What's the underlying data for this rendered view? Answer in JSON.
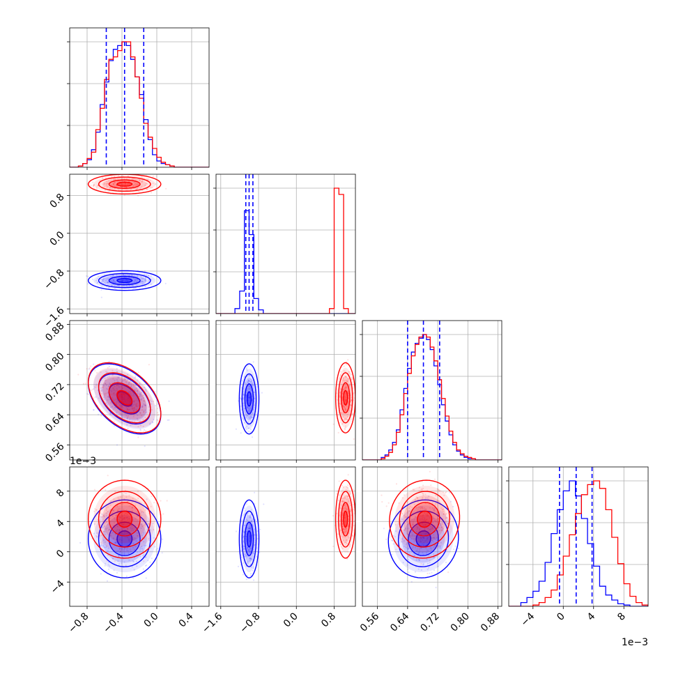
{
  "figure": {
    "type": "corner-plot",
    "params": [
      "p1",
      "p2",
      "p3",
      "p4"
    ],
    "series": [
      {
        "id": "blue",
        "color": "#0000ff"
      },
      {
        "id": "red",
        "color": "#ff0000"
      }
    ],
    "quantile_line_color": "#0000ff"
  },
  "chart_data": {
    "type": "corner",
    "axes": [
      {
        "id": "p1",
        "range": [
          -1.0,
          0.6
        ],
        "ticks": [
          -0.8,
          -0.4,
          0.0,
          0.4
        ],
        "tick_labels": [
          "−0.8",
          "−0.4",
          "0.0",
          "0.4"
        ]
      },
      {
        "id": "p2",
        "range": [
          -1.7,
          1.25
        ],
        "ticks": [
          -1.6,
          -0.8,
          0.0,
          0.8
        ],
        "tick_labels": [
          "−1.6",
          "−0.8",
          "0.0",
          "0.8"
        ]
      },
      {
        "id": "p3",
        "range": [
          0.52,
          0.89
        ],
        "ticks": [
          0.56,
          0.64,
          0.72,
          0.8,
          0.88
        ],
        "tick_labels": [
          "0.56",
          "0.64",
          "0.72",
          "0.80",
          "0.88"
        ]
      },
      {
        "id": "p4",
        "range": [
          -7.2,
          11.2
        ],
        "ticks": [
          -4,
          0,
          4,
          8
        ],
        "tick_labels": [
          "−4",
          "0",
          "4",
          "8"
        ],
        "scale_label": "1e−3"
      }
    ],
    "diagonal_quantiles_blue": [
      [
        -0.58,
        -0.37,
        -0.15
      ],
      [
        -1.07,
        -1.0,
        -0.92
      ],
      [
        0.64,
        0.682,
        0.725
      ],
      [
        -0.5,
        1.7,
        3.8
      ]
    ],
    "histograms": [
      {
        "param": "p1",
        "edges": [
          -1.0,
          -0.95,
          -0.9,
          -0.85,
          -0.8,
          -0.75,
          -0.7,
          -0.65,
          -0.6,
          -0.55,
          -0.5,
          -0.45,
          -0.4,
          -0.35,
          -0.3,
          -0.25,
          -0.2,
          -0.15,
          -0.1,
          -0.05,
          0.0,
          0.05,
          0.1,
          0.15,
          0.2,
          0.25,
          0.3,
          0.35,
          0.4,
          0.45,
          0.5,
          0.55,
          0.6
        ],
        "blue": [
          0,
          0,
          0.01,
          0.03,
          0.06,
          0.14,
          0.28,
          0.5,
          0.68,
          0.85,
          0.94,
          0.97,
          1.0,
          0.97,
          0.86,
          0.72,
          0.58,
          0.38,
          0.22,
          0.1,
          0.05,
          0.03,
          0.02,
          0.01,
          0,
          0,
          0,
          0,
          0,
          0,
          0,
          0
        ],
        "red": [
          0,
          0,
          0.01,
          0.03,
          0.07,
          0.12,
          0.3,
          0.47,
          0.7,
          0.86,
          0.88,
          0.93,
          1.0,
          1.0,
          0.88,
          0.72,
          0.55,
          0.35,
          0.24,
          0.15,
          0.08,
          0.04,
          0.02,
          0.01,
          0,
          0,
          0,
          0,
          0,
          0,
          0,
          0
        ]
      },
      {
        "param": "p2",
        "edges": [
          -1.7,
          -1.6,
          -1.5,
          -1.4,
          -1.3,
          -1.2,
          -1.1,
          -1.0,
          -0.9,
          -0.8,
          -0.7,
          -0.6,
          -0.5,
          -0.4,
          -0.3,
          -0.2,
          -0.1,
          0.0,
          0.1,
          0.2,
          0.3,
          0.4,
          0.5,
          0.6,
          0.7,
          0.8,
          0.9,
          1.0,
          1.1,
          1.2,
          1.25
        ],
        "blue": [
          0,
          0,
          0,
          0,
          0.04,
          0.18,
          0.82,
          0.63,
          0.12,
          0.03,
          0,
          0,
          0,
          0,
          0,
          0,
          0,
          0,
          0,
          0,
          0,
          0,
          0,
          0,
          0,
          0,
          0,
          0,
          0,
          0
        ],
        "red": [
          0,
          0,
          0,
          0,
          0,
          0,
          0,
          0,
          0,
          0,
          0,
          0,
          0,
          0,
          0,
          0,
          0,
          0,
          0,
          0,
          0,
          0,
          0,
          0,
          0.04,
          1.0,
          0.95,
          0.04,
          0,
          0
        ]
      },
      {
        "param": "p3",
        "edges": [
          0.52,
          0.53,
          0.54,
          0.55,
          0.56,
          0.57,
          0.58,
          0.59,
          0.6,
          0.61,
          0.62,
          0.63,
          0.64,
          0.65,
          0.66,
          0.67,
          0.68,
          0.69,
          0.7,
          0.71,
          0.72,
          0.73,
          0.74,
          0.75,
          0.76,
          0.77,
          0.78,
          0.79,
          0.8,
          0.81,
          0.82,
          0.83,
          0.84,
          0.85,
          0.86,
          0.87,
          0.88,
          0.89
        ],
        "blue": [
          0,
          0,
          0,
          0,
          0,
          0.02,
          0.04,
          0.08,
          0.14,
          0.24,
          0.4,
          0.57,
          0.73,
          0.86,
          0.93,
          0.97,
          1.0,
          0.96,
          0.88,
          0.75,
          0.6,
          0.44,
          0.31,
          0.2,
          0.12,
          0.07,
          0.04,
          0.02,
          0.01,
          0.01,
          0,
          0,
          0,
          0,
          0,
          0,
          0
        ],
        "red": [
          0,
          0,
          0,
          0,
          0,
          0.01,
          0.03,
          0.06,
          0.12,
          0.22,
          0.36,
          0.53,
          0.69,
          0.83,
          0.92,
          0.98,
          1.0,
          0.98,
          0.9,
          0.79,
          0.64,
          0.49,
          0.35,
          0.23,
          0.14,
          0.08,
          0.05,
          0.03,
          0.02,
          0.01,
          0,
          0,
          0,
          0,
          0,
          0,
          0
        ]
      },
      {
        "param": "p4",
        "edges": [
          -7.2,
          -6.4,
          -5.6,
          -4.8,
          -4.0,
          -3.2,
          -2.4,
          -1.6,
          -0.8,
          0.0,
          0.8,
          1.6,
          2.4,
          3.2,
          4.0,
          4.8,
          5.6,
          6.4,
          7.2,
          8.0,
          8.8,
          9.6,
          10.4,
          11.2
        ],
        "blue": [
          0,
          0,
          0.03,
          0.07,
          0.12,
          0.2,
          0.35,
          0.58,
          0.77,
          0.92,
          1.0,
          0.88,
          0.7,
          0.5,
          0.32,
          0.16,
          0.09,
          0.05,
          0.02,
          0.01,
          0,
          0,
          0
        ],
        "red": [
          0,
          0,
          0,
          0,
          0.01,
          0.03,
          0.07,
          0.13,
          0.25,
          0.4,
          0.57,
          0.74,
          0.89,
          0.97,
          1.0,
          0.94,
          0.77,
          0.55,
          0.34,
          0.18,
          0.08,
          0.03,
          0.01
        ]
      }
    ],
    "pairs": [
      {
        "x": "p1",
        "y": "p2",
        "blue": {
          "mean": [
            -0.37,
            -1.0
          ],
          "std": [
            0.17,
            0.085
          ],
          "corr": 0.0
        },
        "red": {
          "mean": [
            -0.37,
            1.04
          ],
          "std": [
            0.17,
            0.085
          ],
          "corr": 0.0
        }
      },
      {
        "x": "p1",
        "y": "p3",
        "blue": {
          "mean": [
            -0.37,
            0.682
          ],
          "std": [
            0.17,
            0.038
          ],
          "corr": -0.45
        },
        "red": {
          "mean": [
            -0.37,
            0.685
          ],
          "std": [
            0.17,
            0.038
          ],
          "corr": -0.45
        }
      },
      {
        "x": "p2",
        "y": "p3",
        "blue": {
          "mean": [
            -1.0,
            0.682
          ],
          "std": [
            0.085,
            0.038
          ],
          "corr": 0.0
        },
        "red": {
          "mean": [
            1.04,
            0.685
          ],
          "std": [
            0.085,
            0.038
          ],
          "corr": 0.0
        }
      },
      {
        "x": "p1",
        "y": "p4",
        "blue": {
          "mean": [
            -0.37,
            1.7
          ],
          "std": [
            0.17,
            2.1
          ],
          "corr": 0.0
        },
        "red": {
          "mean": [
            -0.37,
            4.3
          ],
          "std": [
            0.17,
            2.1
          ],
          "corr": 0.0
        }
      },
      {
        "x": "p2",
        "y": "p4",
        "blue": {
          "mean": [
            -1.0,
            1.7
          ],
          "std": [
            0.085,
            2.1
          ],
          "corr": 0.0
        },
        "red": {
          "mean": [
            1.04,
            4.3
          ],
          "std": [
            0.085,
            2.1
          ],
          "corr": 0.0
        }
      },
      {
        "x": "p3",
        "y": "p4",
        "blue": {
          "mean": [
            0.682,
            1.7
          ],
          "std": [
            0.038,
            2.1
          ],
          "corr": 0.05
        },
        "red": {
          "mean": [
            0.685,
            4.3
          ],
          "std": [
            0.038,
            2.1
          ],
          "corr": 0.05
        }
      }
    ],
    "sample_density": 260
  }
}
